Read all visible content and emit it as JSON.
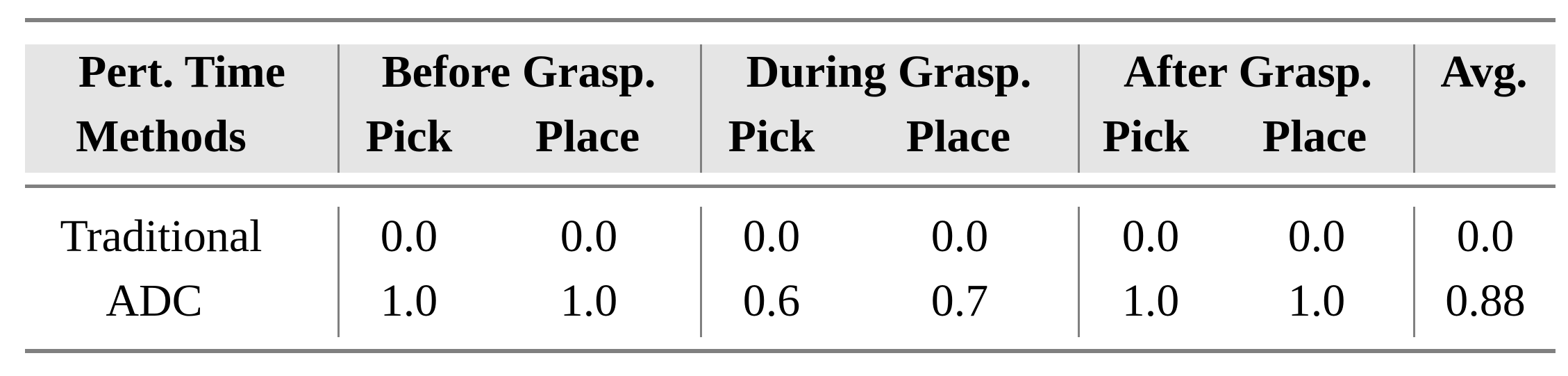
{
  "table": {
    "header_row1": [
      "Pert. Time",
      "Before Grasp.",
      "During Grasp.",
      "After Grasp.",
      "Avg."
    ],
    "header_row2": [
      "Methods",
      "Pick",
      "Place",
      "Pick",
      "Place",
      "Pick",
      "Place",
      ""
    ],
    "rows": [
      {
        "method": "Traditional",
        "values": [
          "0.0",
          "0.0",
          "0.0",
          "0.0",
          "0.0",
          "0.0",
          "0.0"
        ]
      },
      {
        "method": "ADC",
        "values": [
          "1.0",
          "1.0",
          "0.6",
          "0.7",
          "1.0",
          "1.0",
          "0.88"
        ]
      }
    ]
  },
  "colors": {
    "header_bg": "#e5e5e5",
    "rule": "#808080"
  }
}
